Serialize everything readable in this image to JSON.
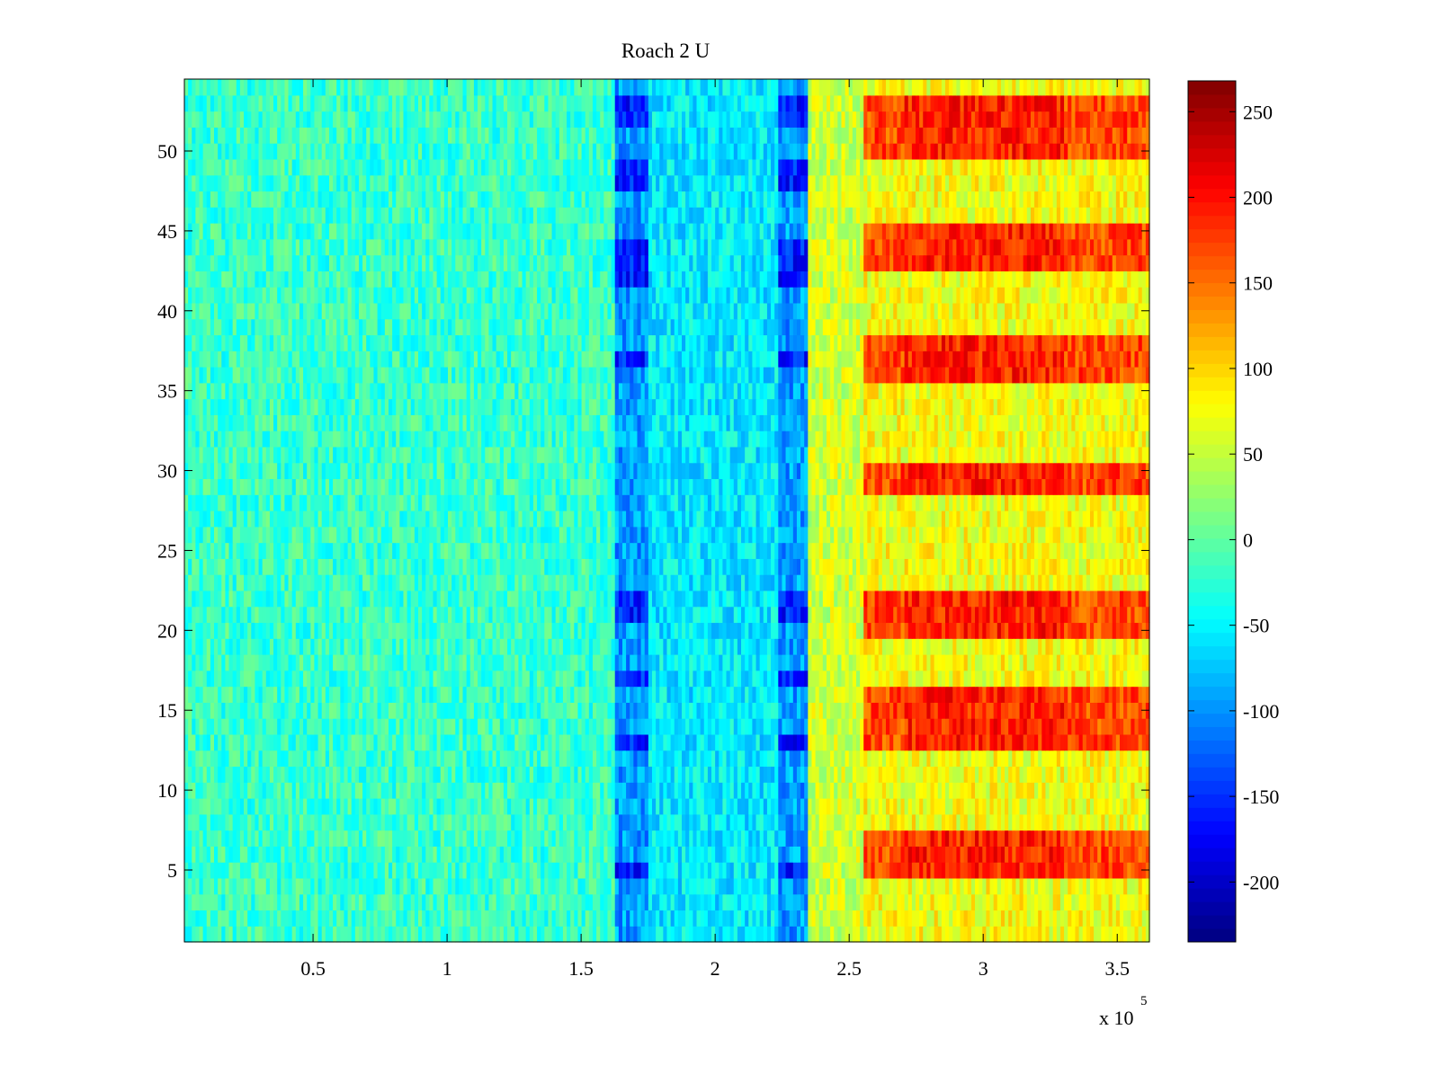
{
  "chart_data": {
    "type": "heatmap",
    "title": "Roach 2 U",
    "xlabel": "",
    "ylabel": "",
    "x_range": [
      2000,
      362000
    ],
    "y_range": [
      0.5,
      54.5
    ],
    "x_exponent_label": {
      "base": "x 10",
      "exponent": "5"
    },
    "x_ticks": [
      {
        "value": 0.5,
        "label": "0.5"
      },
      {
        "value": 1,
        "label": "1"
      },
      {
        "value": 1.5,
        "label": "1.5"
      },
      {
        "value": 2,
        "label": "2"
      },
      {
        "value": 2.5,
        "label": "2.5"
      },
      {
        "value": 3,
        "label": "3"
      },
      {
        "value": 3.5,
        "label": "3.5"
      }
    ],
    "y_ticks": [
      {
        "value": 5,
        "label": "5"
      },
      {
        "value": 10,
        "label": "10"
      },
      {
        "value": 15,
        "label": "15"
      },
      {
        "value": 20,
        "label": "20"
      },
      {
        "value": 25,
        "label": "25"
      },
      {
        "value": 30,
        "label": "30"
      },
      {
        "value": 35,
        "label": "35"
      },
      {
        "value": 40,
        "label": "40"
      },
      {
        "value": 45,
        "label": "45"
      },
      {
        "value": 50,
        "label": "50"
      }
    ],
    "colorbar": {
      "colormap": "jet",
      "range": [
        -235,
        268
      ],
      "ticks": [
        {
          "value": -200,
          "label": "-200"
        },
        {
          "value": -150,
          "label": "-150"
        },
        {
          "value": -100,
          "label": "-100"
        },
        {
          "value": -50,
          "label": "-50"
        },
        {
          "value": 0,
          "label": "0"
        },
        {
          "value": 50,
          "label": "50"
        },
        {
          "value": 100,
          "label": "100"
        },
        {
          "value": 150,
          "label": "150"
        },
        {
          "value": 200,
          "label": "200"
        },
        {
          "value": 250,
          "label": "250"
        }
      ]
    },
    "rows": 54,
    "x_segments": [
      {
        "x0": 2000,
        "x1": 163000,
        "mean": -20
      },
      {
        "x0": 163000,
        "x1": 175000,
        "mean": -95
      },
      {
        "x0": 175000,
        "x1": 223000,
        "mean": -55
      },
      {
        "x0": 223000,
        "x1": 235000,
        "mean": -95
      },
      {
        "x0": 235000,
        "x1": 255000,
        "mean": 55
      },
      {
        "x0": 255000,
        "x1": 362000,
        "mean": 100
      }
    ],
    "hot_rows": [
      5,
      6,
      7,
      13,
      14,
      15,
      16,
      20,
      21,
      22,
      29,
      30,
      36,
      37,
      38,
      43,
      44,
      45,
      50,
      51,
      52,
      53
    ],
    "cold_rows": [
      5,
      13,
      17,
      21,
      22,
      37,
      42,
      43,
      44,
      48,
      49,
      52,
      53
    ],
    "grid": false,
    "legend": "none"
  }
}
